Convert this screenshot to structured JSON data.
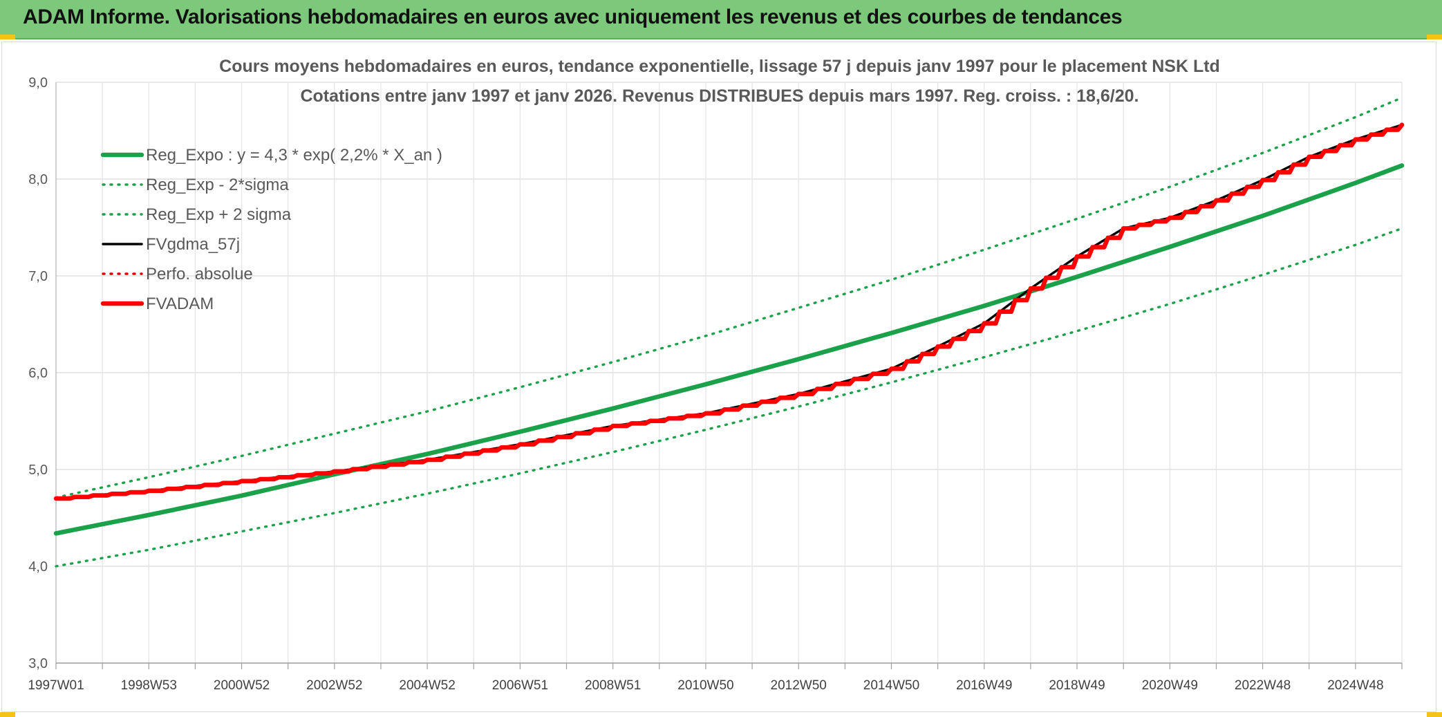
{
  "banner": {
    "title": "ADAM Informe. Valorisations hebdomadaires en euros avec uniquement les revenus et des courbes de tendances",
    "background": "#7cc97c"
  },
  "chart_data": {
    "type": "line",
    "title_lines": [
      "Cours moyens hebdomadaires en euros, tendance exponentielle, lissage 57 j depuis janv 1997 pour le placement NSK Ltd",
      "Cotations entre janv 1997 et janv 2026. Revenus DISTRIBUES depuis mars 1997. Reg. croiss. : 18,6/20."
    ],
    "xlabel": "",
    "ylabel": "",
    "ylim": [
      3.0,
      9.0
    ],
    "yticks": [
      "3,0",
      "4,0",
      "5,0",
      "6,0",
      "7,0",
      "8,0",
      "9,0"
    ],
    "xlim": [
      1997.0,
      2026.0
    ],
    "xticks": [
      {
        "label": "1997W01",
        "year": 1997.0
      },
      {
        "label": "1998W53",
        "year": 1999.0
      },
      {
        "label": "2000W52",
        "year": 2001.0
      },
      {
        "label": "2002W52",
        "year": 2003.0
      },
      {
        "label": "2004W52",
        "year": 2005.0
      },
      {
        "label": "2006W51",
        "year": 2007.0
      },
      {
        "label": "2008W51",
        "year": 2009.0
      },
      {
        "label": "2010W50",
        "year": 2011.0
      },
      {
        "label": "2012W50",
        "year": 2013.0
      },
      {
        "label": "2014W50",
        "year": 2015.0
      },
      {
        "label": "2016W49",
        "year": 2017.0
      },
      {
        "label": "2018W49",
        "year": 2019.0
      },
      {
        "label": "2020W49",
        "year": 2021.0
      },
      {
        "label": "2022W48",
        "year": 2023.0
      },
      {
        "label": "2024W48",
        "year": 2025.0
      }
    ],
    "grid": true,
    "legend_position": "top-left",
    "series": [
      {
        "name": "Reg_Expo : y = 4,3 * exp( 2,2% *  X_an )",
        "color": "#1aa14a",
        "style": "solid",
        "width": "thick",
        "x": [
          1997,
          1999,
          2001,
          2003,
          2005,
          2007,
          2009,
          2011,
          2013,
          2015,
          2017,
          2019,
          2021,
          2023,
          2025,
          2026
        ],
        "y": [
          4.34,
          4.53,
          4.73,
          4.95,
          5.16,
          5.39,
          5.63,
          5.88,
          6.14,
          6.41,
          6.69,
          6.99,
          7.3,
          7.62,
          7.96,
          8.14
        ]
      },
      {
        "name": "Reg_Exp - 2*sigma",
        "color": "#1aa14a",
        "style": "dotted",
        "width": "medium",
        "x": [
          1997,
          1999,
          2001,
          2003,
          2005,
          2007,
          2009,
          2011,
          2013,
          2015,
          2017,
          2019,
          2021,
          2023,
          2025,
          2026
        ],
        "y": [
          4.0,
          4.17,
          4.36,
          4.55,
          4.75,
          4.96,
          5.18,
          5.41,
          5.65,
          5.9,
          6.16,
          6.43,
          6.71,
          7.01,
          7.32,
          7.49
        ]
      },
      {
        "name": "Reg_Exp + 2 sigma",
        "color": "#1aa14a",
        "style": "dotted",
        "width": "medium",
        "x": [
          1997,
          1999,
          2001,
          2003,
          2005,
          2007,
          2009,
          2011,
          2013,
          2015,
          2017,
          2019,
          2021,
          2023,
          2025,
          2026
        ],
        "y": [
          4.71,
          4.92,
          5.14,
          5.37,
          5.6,
          5.85,
          6.11,
          6.38,
          6.67,
          6.96,
          7.27,
          7.59,
          7.92,
          8.27,
          8.64,
          8.84
        ]
      },
      {
        "name": "FVgdma_57j",
        "color": "#000000",
        "style": "solid",
        "width": "medium",
        "x": [
          1997,
          1999,
          2001,
          2003,
          2005,
          2007,
          2009,
          2011,
          2013,
          2015,
          2016,
          2017,
          2018,
          2019,
          2020,
          2021,
          2022,
          2023,
          2024,
          2025,
          2026
        ],
        "y": [
          4.7,
          4.78,
          4.88,
          4.98,
          5.1,
          5.26,
          5.45,
          5.58,
          5.78,
          6.04,
          6.27,
          6.51,
          6.87,
          7.2,
          7.49,
          7.6,
          7.78,
          7.99,
          8.23,
          8.41,
          8.56
        ]
      },
      {
        "name": "Perfo. absolue",
        "color": "#e00000",
        "style": "dotted",
        "width": "medium",
        "x": [],
        "y": []
      },
      {
        "name": "FVADAM",
        "color": "#ff0000",
        "style": "solid",
        "width": "thick",
        "stepped": true,
        "x": [
          1997,
          1999,
          2001,
          2003,
          2005,
          2007,
          2009,
          2011,
          2013,
          2015,
          2016,
          2017,
          2018,
          2019,
          2020,
          2021,
          2022,
          2023,
          2024,
          2025,
          2026
        ],
        "y": [
          4.7,
          4.78,
          4.88,
          4.98,
          5.1,
          5.26,
          5.45,
          5.58,
          5.78,
          6.04,
          6.27,
          6.51,
          6.87,
          7.2,
          7.49,
          7.6,
          7.78,
          7.99,
          8.23,
          8.41,
          8.56
        ]
      }
    ]
  }
}
